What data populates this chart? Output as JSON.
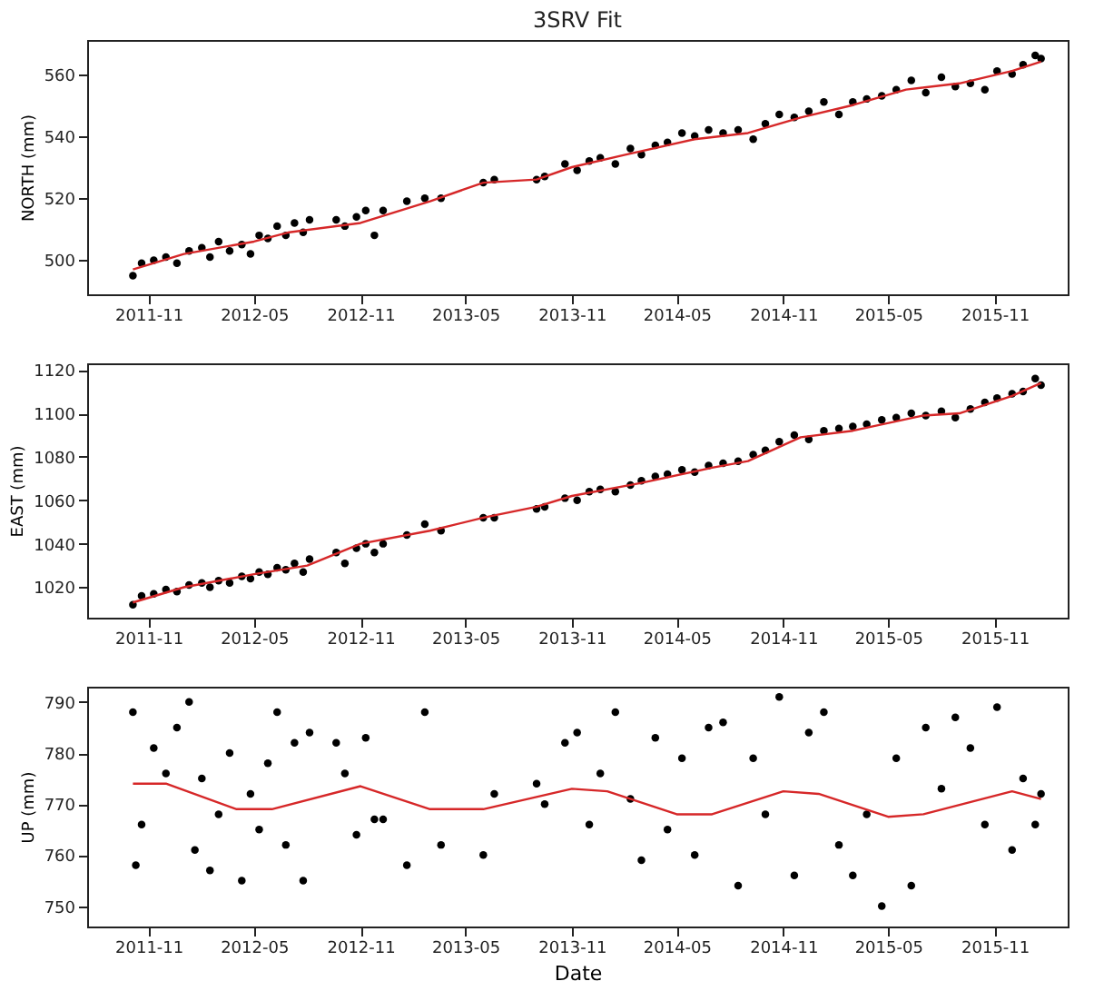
{
  "chart_data": [
    {
      "type": "scatter",
      "title": "3SRV Fit",
      "ylabel": "NORTH (mm)",
      "xlim": [
        "2011-07-18",
        "2016-03-06"
      ],
      "xticks": [
        "2011-11",
        "2012-05",
        "2012-11",
        "2013-05",
        "2013-11",
        "2014-05",
        "2014-11",
        "2015-05",
        "2015-11"
      ],
      "ylim": [
        489,
        571
      ],
      "yticks": [
        500,
        520,
        540,
        560
      ],
      "grid": false,
      "series": [
        {
          "type": "scatter",
          "marker": "circle",
          "color": "#000000",
          "x": [
            "2011-10-05",
            "2011-10-20",
            "2011-11-10",
            "2011-12-01",
            "2011-12-20",
            "2012-01-10",
            "2012-02-01",
            "2012-02-15",
            "2012-03-01",
            "2012-03-20",
            "2012-04-10",
            "2012-04-25",
            "2012-05-10",
            "2012-05-25",
            "2012-06-10",
            "2012-06-25",
            "2012-07-10",
            "2012-07-25",
            "2012-08-05",
            "2012-09-20",
            "2012-10-05",
            "2012-10-25",
            "2012-11-10",
            "2012-11-25",
            "2012-12-10",
            "2013-01-20",
            "2013-02-20",
            "2013-03-20",
            "2013-06-01",
            "2013-06-20",
            "2013-09-01",
            "2013-09-15",
            "2013-10-20",
            "2013-11-10",
            "2013-12-01",
            "2013-12-20",
            "2014-01-15",
            "2014-02-10",
            "2014-03-01",
            "2014-03-25",
            "2014-04-15",
            "2014-05-10",
            "2014-06-01",
            "2014-06-25",
            "2014-07-20",
            "2014-08-15",
            "2014-09-10",
            "2014-10-01",
            "2014-10-25",
            "2014-11-20",
            "2014-12-15",
            "2015-01-10",
            "2015-02-05",
            "2015-03-01",
            "2015-03-25",
            "2015-04-20",
            "2015-05-15",
            "2015-06-10",
            "2015-07-05",
            "2015-08-01",
            "2015-08-25",
            "2015-09-20",
            "2015-10-15",
            "2015-11-05",
            "2015-12-01",
            "2015-12-20",
            "2016-01-10",
            "2016-01-20"
          ],
          "values": [
            495,
            499,
            500,
            501,
            499,
            503,
            504,
            501,
            506,
            503,
            505,
            502,
            508,
            507,
            511,
            508,
            512,
            509,
            513,
            513,
            511,
            514,
            516,
            508,
            516,
            519,
            520,
            520,
            525,
            526,
            526,
            527,
            531,
            529,
            532,
            533,
            531,
            536,
            534,
            537,
            538,
            541,
            540,
            542,
            541,
            542,
            539,
            544,
            547,
            546,
            548,
            551,
            547,
            551,
            552,
            553,
            555,
            558,
            554,
            559,
            556,
            557,
            555,
            561,
            560,
            563,
            566,
            565
          ]
        },
        {
          "type": "line",
          "color": "#d62728",
          "x": [
            "2011-10-05",
            "2012-01-01",
            "2012-05-01",
            "2012-07-01",
            "2012-11-01",
            "2013-03-01",
            "2013-06-01",
            "2013-09-01",
            "2013-11-01",
            "2014-02-01",
            "2014-06-01",
            "2014-09-01",
            "2014-12-01",
            "2015-03-01",
            "2015-06-01",
            "2015-09-01",
            "2015-12-01",
            "2016-01-20"
          ],
          "values": [
            497,
            502,
            506,
            509,
            512,
            519,
            525,
            526,
            530,
            534,
            539,
            541,
            546,
            550,
            555,
            557,
            561,
            564
          ]
        }
      ]
    },
    {
      "type": "scatter",
      "ylabel": "EAST (mm)",
      "xlim": [
        "2011-07-18",
        "2016-03-06"
      ],
      "xticks": [
        "2011-11",
        "2012-05",
        "2012-11",
        "2013-05",
        "2013-11",
        "2014-05",
        "2014-11",
        "2015-05",
        "2015-11"
      ],
      "ylim": [
        1006,
        1123
      ],
      "yticks": [
        1020,
        1040,
        1060,
        1080,
        1100,
        1120
      ],
      "grid": false,
      "series": [
        {
          "type": "scatter",
          "marker": "circle",
          "color": "#000000",
          "x": [
            "2011-10-05",
            "2011-10-20",
            "2011-11-10",
            "2011-12-01",
            "2011-12-20",
            "2012-01-10",
            "2012-02-01",
            "2012-02-15",
            "2012-03-01",
            "2012-03-20",
            "2012-04-10",
            "2012-04-25",
            "2012-05-10",
            "2012-05-25",
            "2012-06-10",
            "2012-06-25",
            "2012-07-10",
            "2012-07-25",
            "2012-08-05",
            "2012-09-20",
            "2012-10-05",
            "2012-10-25",
            "2012-11-10",
            "2012-11-25",
            "2012-12-10",
            "2013-01-20",
            "2013-02-20",
            "2013-03-20",
            "2013-06-01",
            "2013-06-20",
            "2013-09-01",
            "2013-09-15",
            "2013-10-20",
            "2013-11-10",
            "2013-12-01",
            "2013-12-20",
            "2014-01-15",
            "2014-02-10",
            "2014-03-01",
            "2014-03-25",
            "2014-04-15",
            "2014-05-10",
            "2014-06-01",
            "2014-06-25",
            "2014-07-20",
            "2014-08-15",
            "2014-09-10",
            "2014-10-01",
            "2014-10-25",
            "2014-11-20",
            "2014-12-15",
            "2015-01-10",
            "2015-02-05",
            "2015-03-01",
            "2015-03-25",
            "2015-04-20",
            "2015-05-15",
            "2015-06-10",
            "2015-07-05",
            "2015-08-01",
            "2015-08-25",
            "2015-09-20",
            "2015-10-15",
            "2015-11-05",
            "2015-12-01",
            "2015-12-20",
            "2016-01-10",
            "2016-01-20"
          ],
          "values": [
            1012,
            1016,
            1017,
            1019,
            1018,
            1021,
            1022,
            1020,
            1023,
            1022,
            1025,
            1024,
            1027,
            1026,
            1029,
            1028,
            1031,
            1027,
            1033,
            1036,
            1031,
            1038,
            1040,
            1036,
            1040,
            1044,
            1049,
            1046,
            1052,
            1052,
            1056,
            1057,
            1061,
            1060,
            1064,
            1065,
            1064,
            1067,
            1069,
            1071,
            1072,
            1074,
            1073,
            1076,
            1077,
            1078,
            1081,
            1083,
            1087,
            1090,
            1088,
            1092,
            1093,
            1094,
            1095,
            1097,
            1098,
            1100,
            1099,
            1101,
            1098,
            1102,
            1105,
            1107,
            1109,
            1110,
            1116,
            1113
          ]
        },
        {
          "type": "line",
          "color": "#d62728",
          "x": [
            "2011-10-05",
            "2012-01-01",
            "2012-05-01",
            "2012-08-01",
            "2012-11-01",
            "2013-03-01",
            "2013-06-01",
            "2013-09-01",
            "2013-11-01",
            "2014-03-01",
            "2014-07-01",
            "2014-09-01",
            "2014-12-01",
            "2015-03-01",
            "2015-07-01",
            "2015-09-01",
            "2015-12-01",
            "2016-01-20"
          ],
          "values": [
            1013,
            1020,
            1026,
            1030,
            1040,
            1046,
            1052,
            1057,
            1062,
            1068,
            1075,
            1078,
            1089,
            1092,
            1099,
            1100,
            1108,
            1114
          ]
        }
      ]
    },
    {
      "type": "scatter",
      "xlabel": "Date",
      "ylabel": "UP (mm)",
      "xlim": [
        "2011-07-18",
        "2016-03-06"
      ],
      "xticks": [
        "2011-11",
        "2012-05",
        "2012-11",
        "2013-05",
        "2013-11",
        "2014-05",
        "2014-11",
        "2015-05",
        "2015-11"
      ],
      "ylim": [
        746,
        793
      ],
      "yticks": [
        750,
        760,
        770,
        780,
        790
      ],
      "grid": false,
      "series": [
        {
          "type": "scatter",
          "marker": "circle",
          "color": "#000000",
          "x": [
            "2011-10-05",
            "2011-10-10",
            "2011-10-20",
            "2011-11-10",
            "2011-12-01",
            "2011-12-20",
            "2012-01-10",
            "2012-01-20",
            "2012-02-01",
            "2012-02-15",
            "2012-03-01",
            "2012-03-20",
            "2012-04-10",
            "2012-04-25",
            "2012-05-10",
            "2012-05-25",
            "2012-06-10",
            "2012-06-25",
            "2012-07-10",
            "2012-07-25",
            "2012-08-05",
            "2012-09-20",
            "2012-10-05",
            "2012-10-25",
            "2012-11-10",
            "2012-11-25",
            "2012-12-10",
            "2013-01-20",
            "2013-02-20",
            "2013-03-20",
            "2013-06-01",
            "2013-06-20",
            "2013-09-01",
            "2013-09-15",
            "2013-10-20",
            "2013-11-10",
            "2013-12-01",
            "2013-12-20",
            "2014-01-15",
            "2014-02-10",
            "2014-03-01",
            "2014-03-25",
            "2014-04-15",
            "2014-05-10",
            "2014-06-01",
            "2014-06-25",
            "2014-07-20",
            "2014-08-15",
            "2014-09-10",
            "2014-10-01",
            "2014-10-25",
            "2014-11-20",
            "2014-12-15",
            "2015-01-10",
            "2015-02-05",
            "2015-03-01",
            "2015-03-25",
            "2015-04-20",
            "2015-05-15",
            "2015-06-10",
            "2015-07-05",
            "2015-08-01",
            "2015-08-25",
            "2015-09-20",
            "2015-10-15",
            "2015-11-05",
            "2015-12-01",
            "2015-12-20",
            "2016-01-10",
            "2016-01-20"
          ],
          "values": [
            788,
            758,
            766,
            781,
            776,
            785,
            790,
            761,
            775,
            757,
            768,
            780,
            755,
            772,
            765,
            778,
            788,
            762,
            782,
            755,
            784,
            782,
            776,
            764,
            783,
            767,
            767,
            758,
            788,
            762,
            760,
            772,
            774,
            770,
            782,
            784,
            766,
            776,
            788,
            771,
            759,
            783,
            765,
            779,
            760,
            785,
            786,
            754,
            779,
            768,
            791,
            756,
            784,
            788,
            762,
            756,
            768,
            750,
            779,
            754,
            785,
            773,
            787,
            781,
            766,
            789,
            761,
            775,
            766,
            772
          ]
        },
        {
          "type": "line",
          "color": "#d62728",
          "x": [
            "2011-10-05",
            "2011-12-01",
            "2012-04-01",
            "2012-06-01",
            "2012-11-01",
            "2013-03-01",
            "2013-06-01",
            "2013-11-01",
            "2014-01-01",
            "2014-05-01",
            "2014-07-01",
            "2014-11-01",
            "2015-01-01",
            "2015-05-01",
            "2015-07-01",
            "2015-12-01",
            "2016-01-20"
          ],
          "values": [
            774,
            774,
            769,
            769,
            773.5,
            769,
            769,
            773,
            772.5,
            768,
            768,
            772.5,
            772,
            767.5,
            768,
            772.5,
            771
          ]
        }
      ]
    }
  ]
}
